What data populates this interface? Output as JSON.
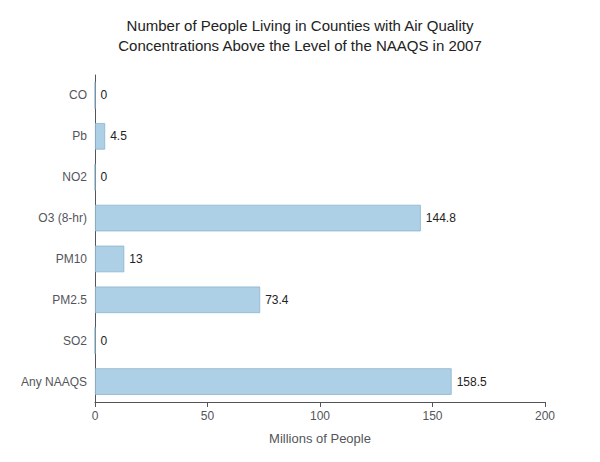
{
  "chart_data": {
    "type": "bar",
    "orientation": "horizontal",
    "title": "Number of People Living in Counties with Air Quality\nConcentrations Above the Level of the NAAQS in 2007",
    "categories": [
      "CO",
      "Pb",
      "NO2",
      "O3 (8-hr)",
      "PM10",
      "PM2.5",
      "SO2",
      "Any NAAQS"
    ],
    "values": [
      0,
      4.5,
      0,
      144.8,
      13,
      73.4,
      0,
      158.5
    ],
    "color": "#aed0e6",
    "xlabel": "Millions of People",
    "xlim": [
      0,
      200
    ],
    "xticks": [
      0,
      50,
      100,
      150,
      200
    ],
    "grid": false,
    "data_labels": true
  }
}
